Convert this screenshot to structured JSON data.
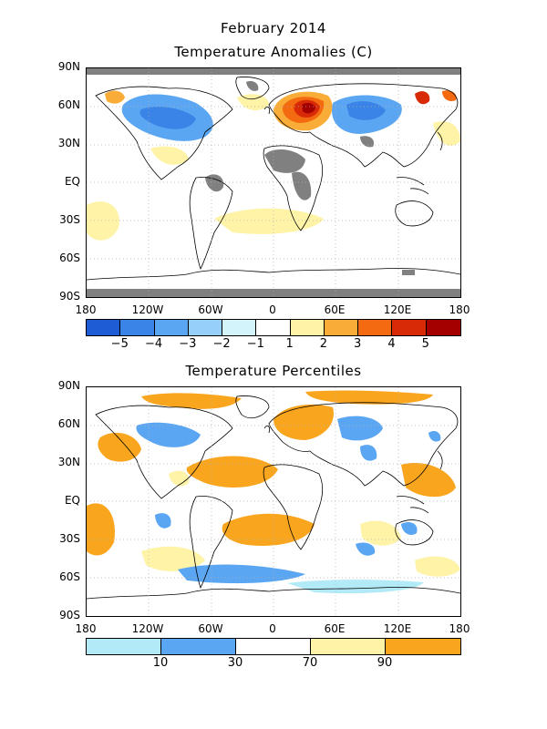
{
  "figure": {
    "title": "February 2014",
    "panel1_title": "Temperature Anomalies (C)",
    "panel2_title": "Temperature Percentiles"
  },
  "lat_labels": [
    "90N",
    "60N",
    "30N",
    "EQ",
    "30S",
    "60S",
    "90S"
  ],
  "lon_labels": [
    "180",
    "120W",
    "60W",
    "0",
    "60E",
    "120E",
    "180"
  ],
  "anomaly_legend": {
    "colors": [
      "#1e5cd6",
      "#3a84e8",
      "#5aa6f2",
      "#96cff9",
      "#d4f4fc",
      "#ffffff",
      "#fff3a8",
      "#f9ad38",
      "#f46a10",
      "#d92a08",
      "#a40000"
    ],
    "labels": [
      "−5",
      "−4",
      "−3",
      "−2",
      "−1",
      "1",
      "2",
      "3",
      "4",
      "5"
    ]
  },
  "percentile_legend": {
    "colors": [
      "#b3eaf7",
      "#5aa6f2",
      "#ffffff",
      "#fff3a8",
      "#f9a51e"
    ],
    "labels": [
      "10",
      "30",
      "70",
      "90"
    ]
  },
  "colors": {
    "missing": "#808080",
    "coast": "#000000",
    "grid": "#b0b0b0"
  }
}
